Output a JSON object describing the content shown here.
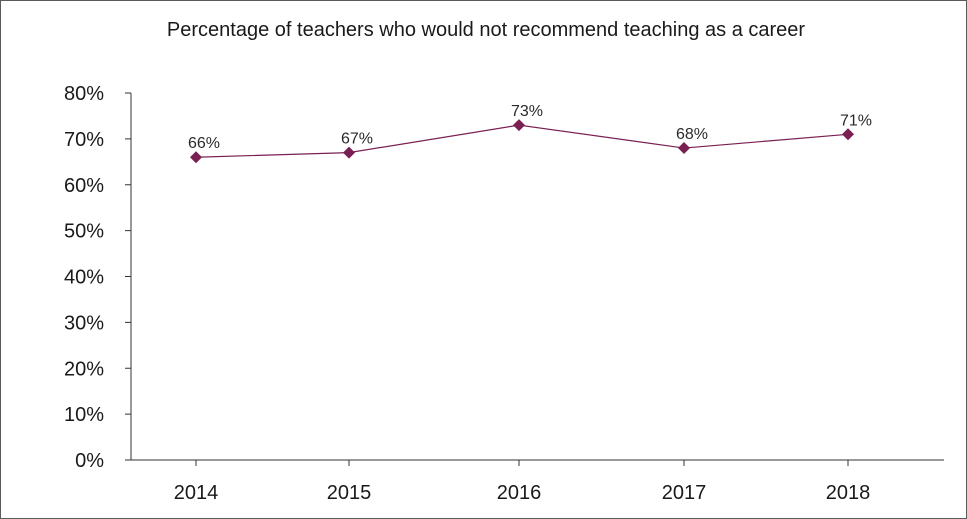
{
  "chart_data": {
    "type": "line",
    "title": "Percentage of teachers who would not recommend teaching as a career",
    "xlabel": "",
    "ylabel": "",
    "categories": [
      "2014",
      "2015",
      "2016",
      "2017",
      "2018"
    ],
    "series": [
      {
        "values": [
          66,
          67,
          73,
          68,
          71
        ],
        "labels": [
          "66%",
          "67%",
          "73%",
          "68%",
          "71%"
        ],
        "color": "#7a1f52",
        "marker": "diamond"
      }
    ],
    "ylim": [
      0,
      80
    ],
    "yticks": [
      0,
      10,
      20,
      30,
      40,
      50,
      60,
      70,
      80
    ],
    "ytick_labels": [
      "0%",
      "10%",
      "20%",
      "30%",
      "40%",
      "50%",
      "60%",
      "70%",
      "80%"
    ],
    "grid": false,
    "legend": "none"
  }
}
